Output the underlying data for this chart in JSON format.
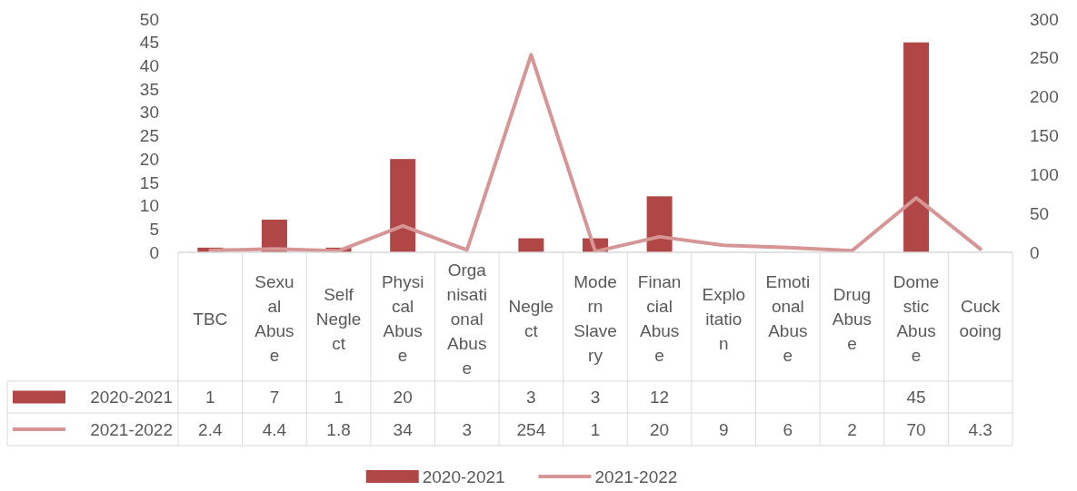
{
  "chart_data": {
    "type": "bar",
    "categories": [
      "TBC",
      "Sexual Abuse",
      "Self Neglect",
      "Physical Abuse",
      "Organisational Abuse",
      "Neglect",
      "Modern Slavery",
      "Financial Abuse",
      "Exploitation",
      "Emotional Abuse",
      "Drug Abuse",
      "Domestic Abuse",
      "Cuckooing"
    ],
    "series": [
      {
        "name": "2020-2021",
        "color": "#b04646",
        "values": [
          1,
          7,
          1,
          20,
          null,
          3,
          3,
          12,
          null,
          null,
          null,
          45,
          null
        ]
      },
      {
        "name": "2021-2022",
        "type": "line",
        "axis": "y2",
        "color": "#d69696",
        "values": [
          2.4,
          4.4,
          1.8,
          34,
          3,
          254,
          1,
          20,
          9,
          6,
          2,
          70,
          4.3
        ]
      }
    ],
    "ylim": [
      0,
      50
    ],
    "yticks": [
      0,
      5,
      10,
      15,
      20,
      25,
      30,
      35,
      40,
      45,
      50
    ],
    "y2lim": [
      0,
      300
    ],
    "y2ticks": [
      0,
      50,
      100,
      150,
      200,
      250,
      300
    ],
    "data_labels": true,
    "grid": false,
    "legend": "bottom",
    "marker": "none",
    "line_style": "solid"
  }
}
